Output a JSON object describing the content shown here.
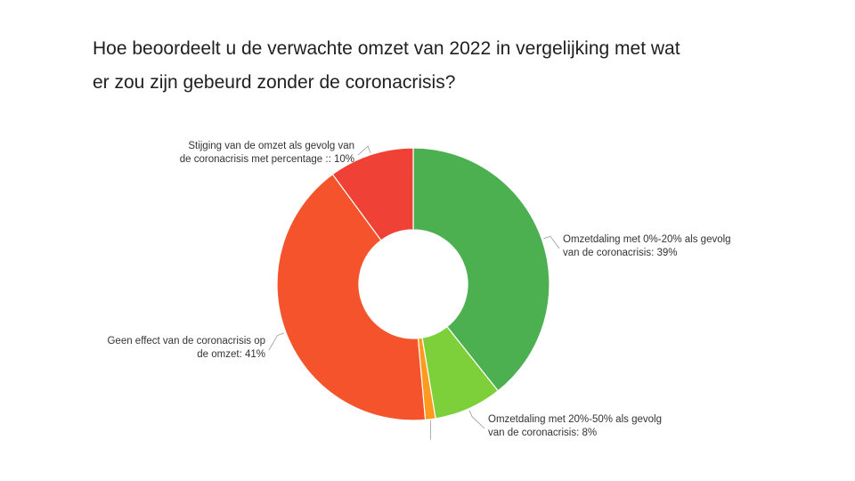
{
  "chart_data": {
    "type": "pie",
    "donut": true,
    "title_lines": [
      "Hoe beoordeelt u de verwachte omzet van 2022 in vergelijking met wat",
      "er zou zijn gebeurd zonder de coronacrisis?"
    ],
    "slices": [
      {
        "value": 39,
        "color": "#4caf50",
        "label_lines": [
          "Omzetdaling met 0%-20% als gevolg",
          "van de coronacrisis: 39%"
        ]
      },
      {
        "value": 8,
        "color": "#7ed03b",
        "label_lines": [
          "Omzetdaling met 20%-50% als gevolg",
          "van de coronacrisis: 8%"
        ]
      },
      {
        "value": 1.2,
        "color": "#ff9a1f",
        "label_lines": []
      },
      {
        "value": 41,
        "color": "#f4532b",
        "label_lines": [
          "Geen effect van de coronacrisis op",
          "de omzet: 41%"
        ]
      },
      {
        "value": 10,
        "color": "#ef4136",
        "label_lines": [
          "Stijging van de omzet als gevolg van",
          "de coronacrisis met percentage :: 10%"
        ]
      }
    ]
  }
}
